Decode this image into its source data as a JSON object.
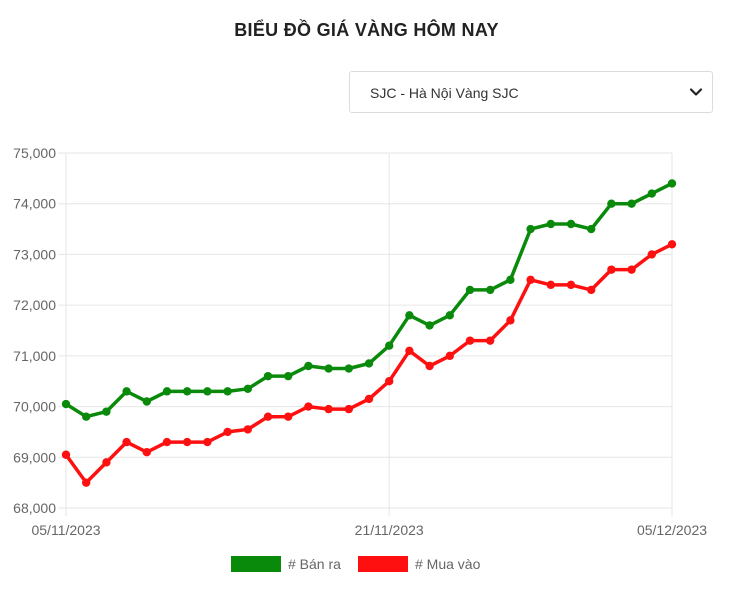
{
  "title": "BIỂU ĐỒ GIÁ VÀNG HÔM NAY",
  "selector": {
    "value": "SJC - Hà Nội Vàng SJC",
    "icon": "chevron-down-icon"
  },
  "colors": {
    "sell": "#0a8a0a",
    "buy": "#ff1010",
    "grid": "#e6e6e6",
    "tick": "#666666"
  },
  "chart_data": {
    "type": "line",
    "title": "BIỂU ĐỒ GIÁ VÀNG HÔM NAY",
    "xlabel": "",
    "ylabel": "",
    "ylim": [
      68000,
      75000
    ],
    "y_ticks": [
      "75,000",
      "74,000",
      "73,000",
      "72,000",
      "71,000",
      "70,000",
      "69,000",
      "68,000"
    ],
    "x_ticks": [
      "05/11/2023",
      "21/11/2023",
      "05/12/2023"
    ],
    "grid": true,
    "legend": "bottom",
    "series": [
      {
        "name": "# Bán ra",
        "color": "#0a8a0a",
        "values": [
          70050,
          69800,
          69900,
          70300,
          70100,
          70300,
          70300,
          70300,
          70300,
          70350,
          70600,
          70600,
          70800,
          70750,
          70750,
          70850,
          71200,
          71800,
          71600,
          71800,
          72300,
          72300,
          72500,
          73500,
          73600,
          73600,
          73500,
          74000,
          74000,
          74200,
          74400
        ]
      },
      {
        "name": "# Mua vào",
        "color": "#ff1010",
        "values": [
          69050,
          68500,
          68900,
          69300,
          69100,
          69300,
          69300,
          69300,
          69500,
          69550,
          69800,
          69800,
          70000,
          69950,
          69950,
          70150,
          70500,
          71100,
          70800,
          71000,
          71300,
          71300,
          71700,
          72500,
          72400,
          72400,
          72300,
          72700,
          72700,
          73000,
          73200
        ]
      }
    ]
  }
}
